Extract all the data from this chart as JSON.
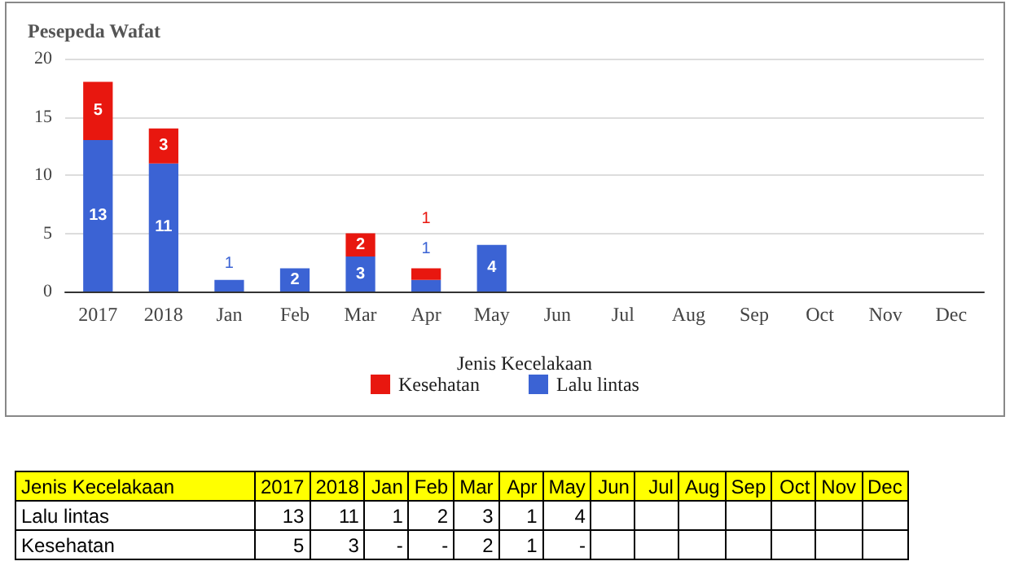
{
  "chart_data": {
    "type": "bar",
    "title": "Pesepeda Wafat",
    "xlabel": "Jenis Kecelakaan",
    "categories": [
      "2017",
      "2018",
      "Jan",
      "Feb",
      "Mar",
      "Apr",
      "May",
      "Jun",
      "Jul",
      "Aug",
      "Sep",
      "Oct",
      "Nov",
      "Dec"
    ],
    "series": [
      {
        "name": "Lalu lintas",
        "color": "#3b63d4",
        "values": [
          13,
          11,
          1,
          2,
          3,
          1,
          4,
          null,
          null,
          null,
          null,
          null,
          null,
          null
        ],
        "value_labels": [
          "13",
          "11",
          "1",
          "2",
          "3",
          "1",
          "4",
          null,
          null,
          null,
          null,
          null,
          null,
          null
        ]
      },
      {
        "name": "Kesehatan",
        "color": "#e8170f",
        "values": [
          5,
          3,
          null,
          null,
          2,
          1,
          null,
          null,
          null,
          null,
          null,
          null,
          null,
          null
        ],
        "value_labels": [
          "5",
          "3",
          "-",
          "-",
          "2",
          "1",
          "-",
          null,
          null,
          null,
          null,
          null,
          null,
          null
        ]
      }
    ],
    "stacked": true,
    "ylim": [
      0,
      20
    ],
    "yticks": [
      0,
      5,
      10,
      15,
      20
    ],
    "grid": "y",
    "legend": "bottom",
    "data_labels": true
  }
}
